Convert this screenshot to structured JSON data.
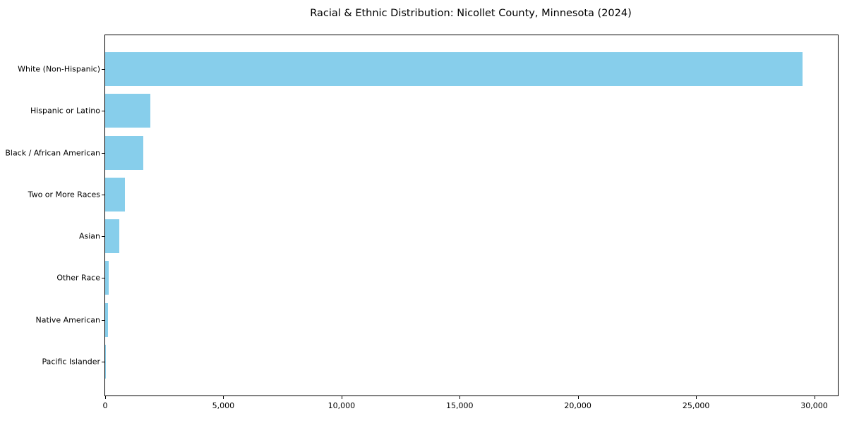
{
  "chart_data": {
    "type": "bar",
    "orientation": "horizontal",
    "title": "Racial & Ethnic Distribution: Nicollet County, Minnesota (2024)",
    "categories": [
      "White (Non-Hispanic)",
      "Hispanic or Latino",
      "Black / African American",
      "Two or More Races",
      "Asian",
      "Other Race",
      "Native American",
      "Pacific Islander"
    ],
    "values": [
      29500,
      1900,
      1600,
      850,
      590,
      150,
      120,
      15
    ],
    "xlabel": "",
    "ylabel": "",
    "xlim": [
      0,
      31000
    ],
    "xticks": {
      "values": [
        0,
        5000,
        10000,
        15000,
        20000,
        25000,
        30000
      ],
      "labels": [
        "0",
        "5,000",
        "10,000",
        "15,000",
        "20,000",
        "25,000",
        "30,000"
      ]
    },
    "grid": false,
    "legend": false,
    "bar_color": "#87CEEB",
    "text_color": "#000000",
    "background_color": "#ffffff"
  }
}
